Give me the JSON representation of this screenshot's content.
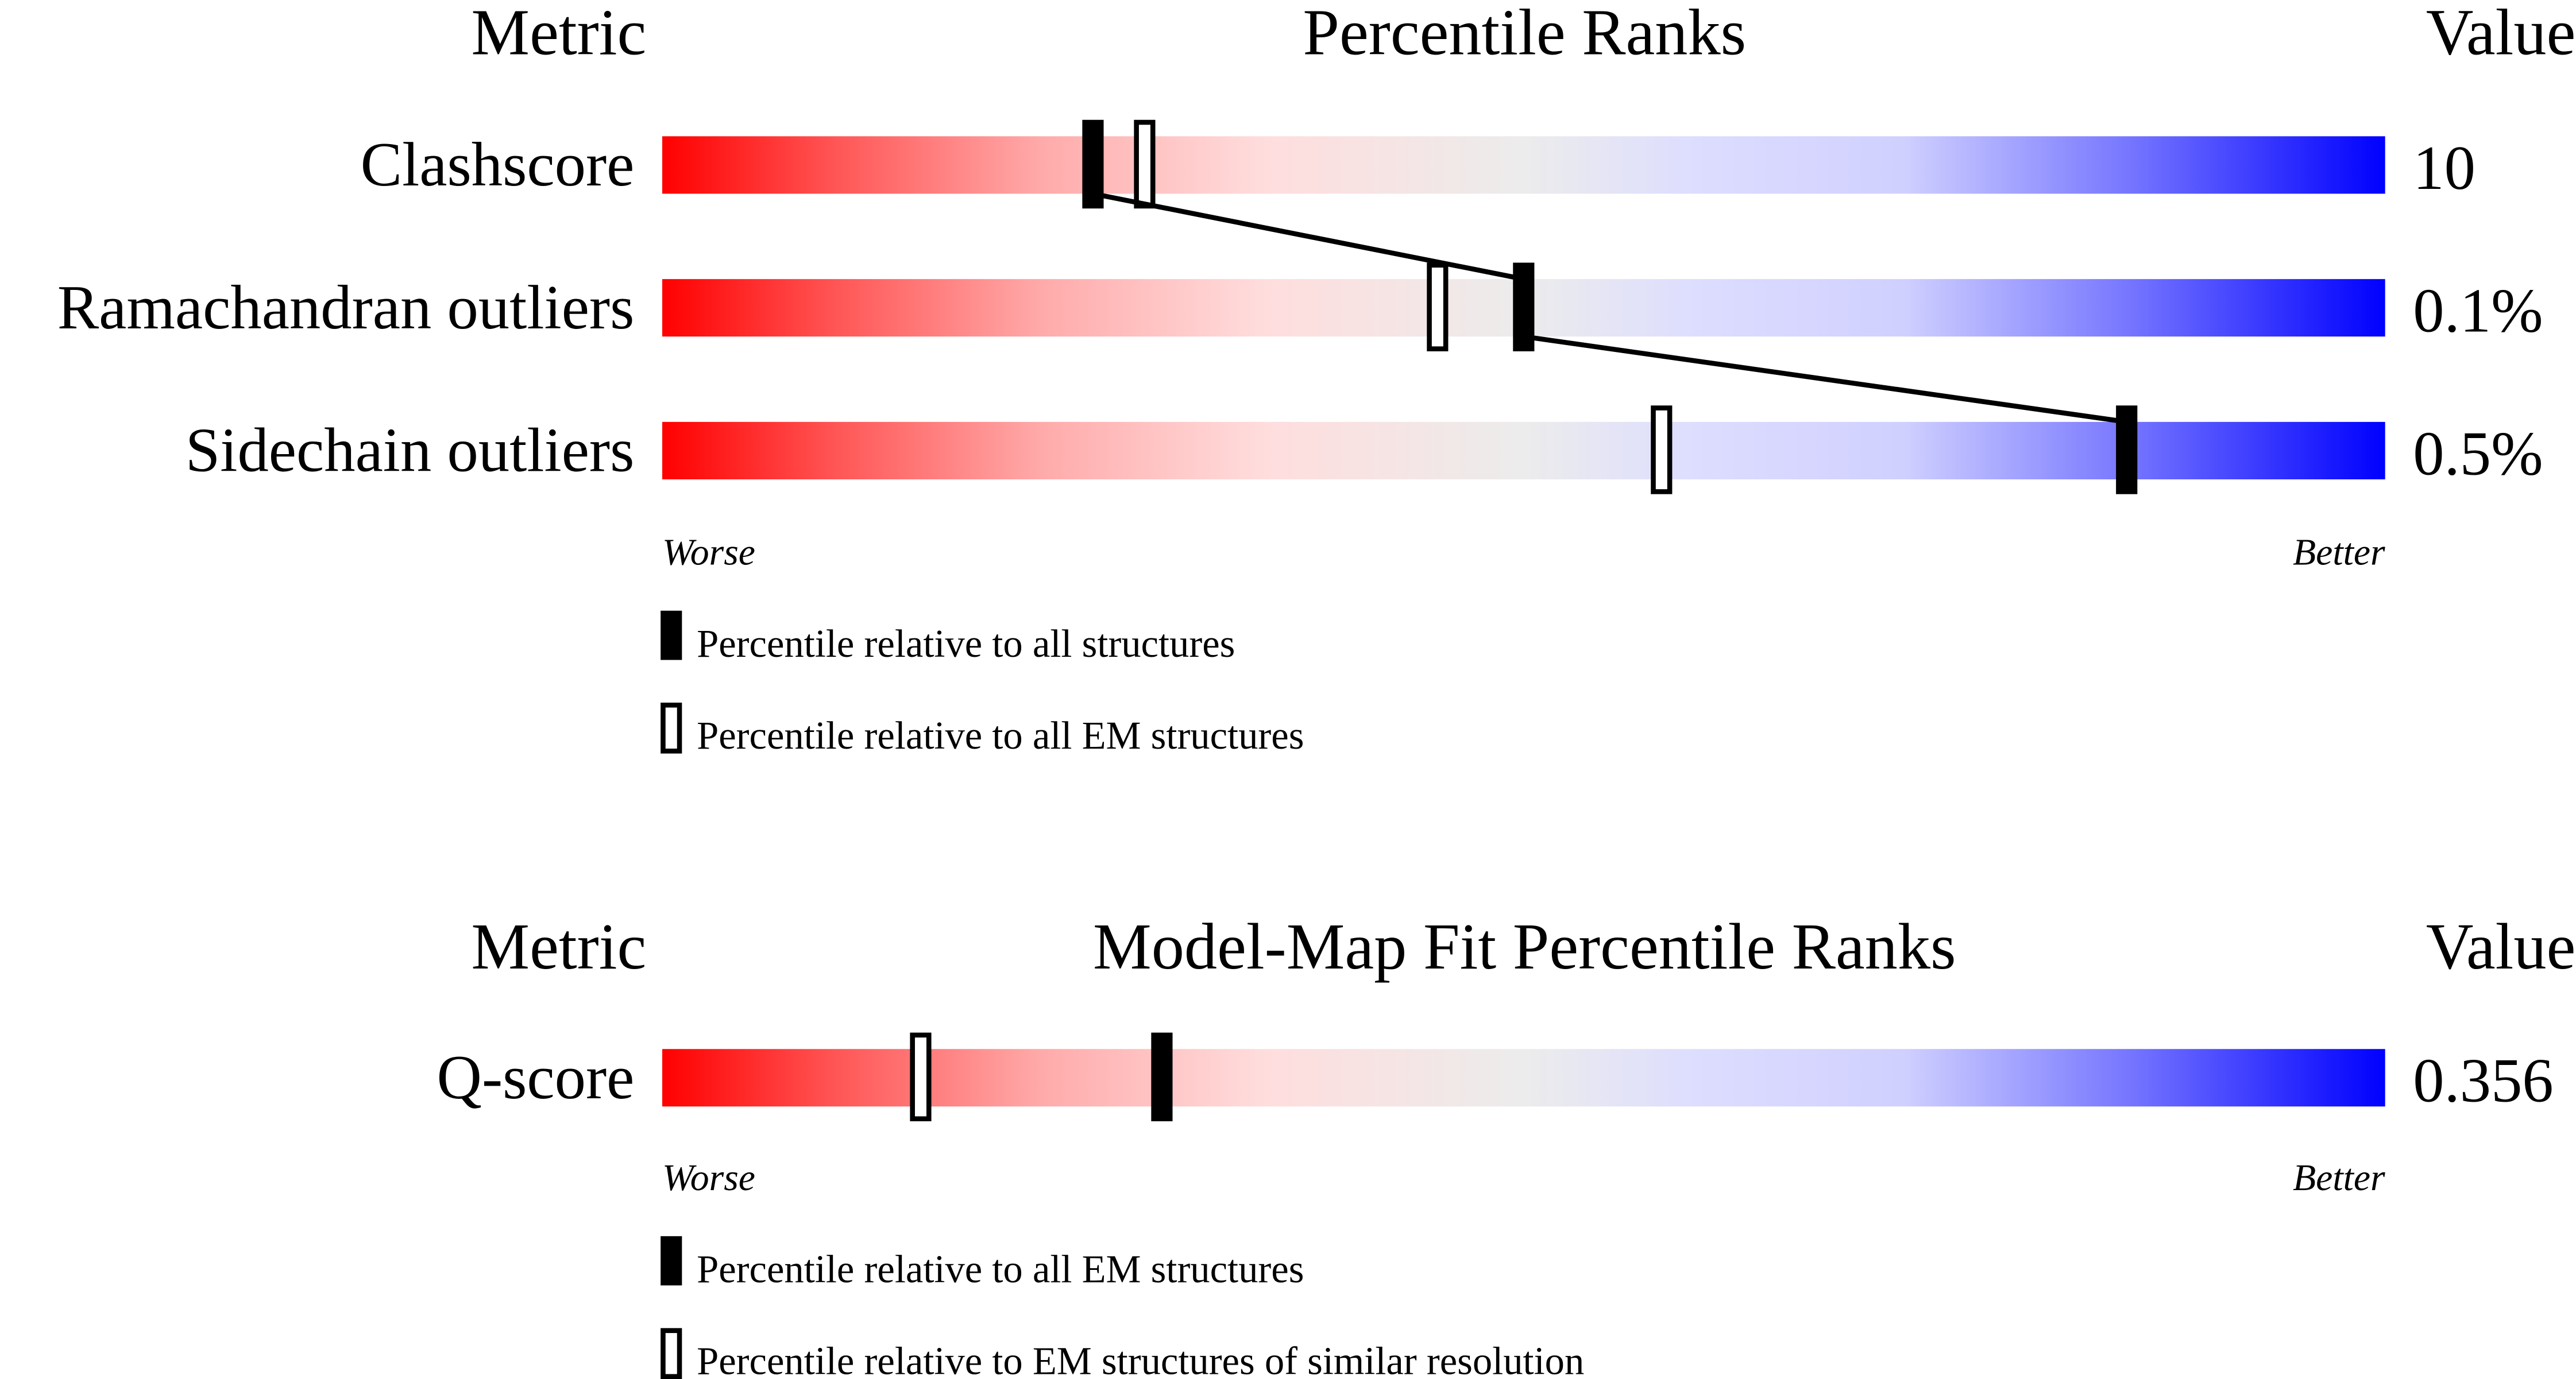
{
  "chart_data": [
    {
      "type": "percentile-rank-bars",
      "headers": {
        "metric": "Metric",
        "title": "Percentile Ranks",
        "value": "Value"
      },
      "axis": {
        "worse": "Worse",
        "better": "Better",
        "range": [
          0,
          100
        ]
      },
      "rows": [
        {
          "metric": "Clashscore",
          "value": "10",
          "percentile_all": 25,
          "percentile_em": 28
        },
        {
          "metric": "Ramachandran outliers",
          "value": "0.1%",
          "percentile_all": 50,
          "percentile_em": 45
        },
        {
          "metric": "Sidechain outliers",
          "value": "0.5%",
          "percentile_all": 85,
          "percentile_em": 58
        }
      ],
      "connect_all_markers": true,
      "legend": {
        "filled": "Percentile relative to all structures",
        "open": "Percentile relative to all EM structures"
      }
    },
    {
      "type": "percentile-rank-bars",
      "headers": {
        "metric": "Metric",
        "title": "Model-Map Fit Percentile Ranks",
        "value": "Value"
      },
      "axis": {
        "worse": "Worse",
        "better": "Better",
        "range": [
          0,
          100
        ]
      },
      "rows": [
        {
          "metric": "Q-score",
          "value": "0.356",
          "percentile_all": 29,
          "percentile_em": 15
        }
      ],
      "connect_all_markers": false,
      "legend": {
        "filled": "Percentile relative to all EM structures",
        "open": "Percentile relative to EM structures of similar resolution"
      }
    }
  ],
  "colors": {
    "worse": "#ff0000",
    "mid": "#ececec",
    "better": "#0000ff"
  }
}
